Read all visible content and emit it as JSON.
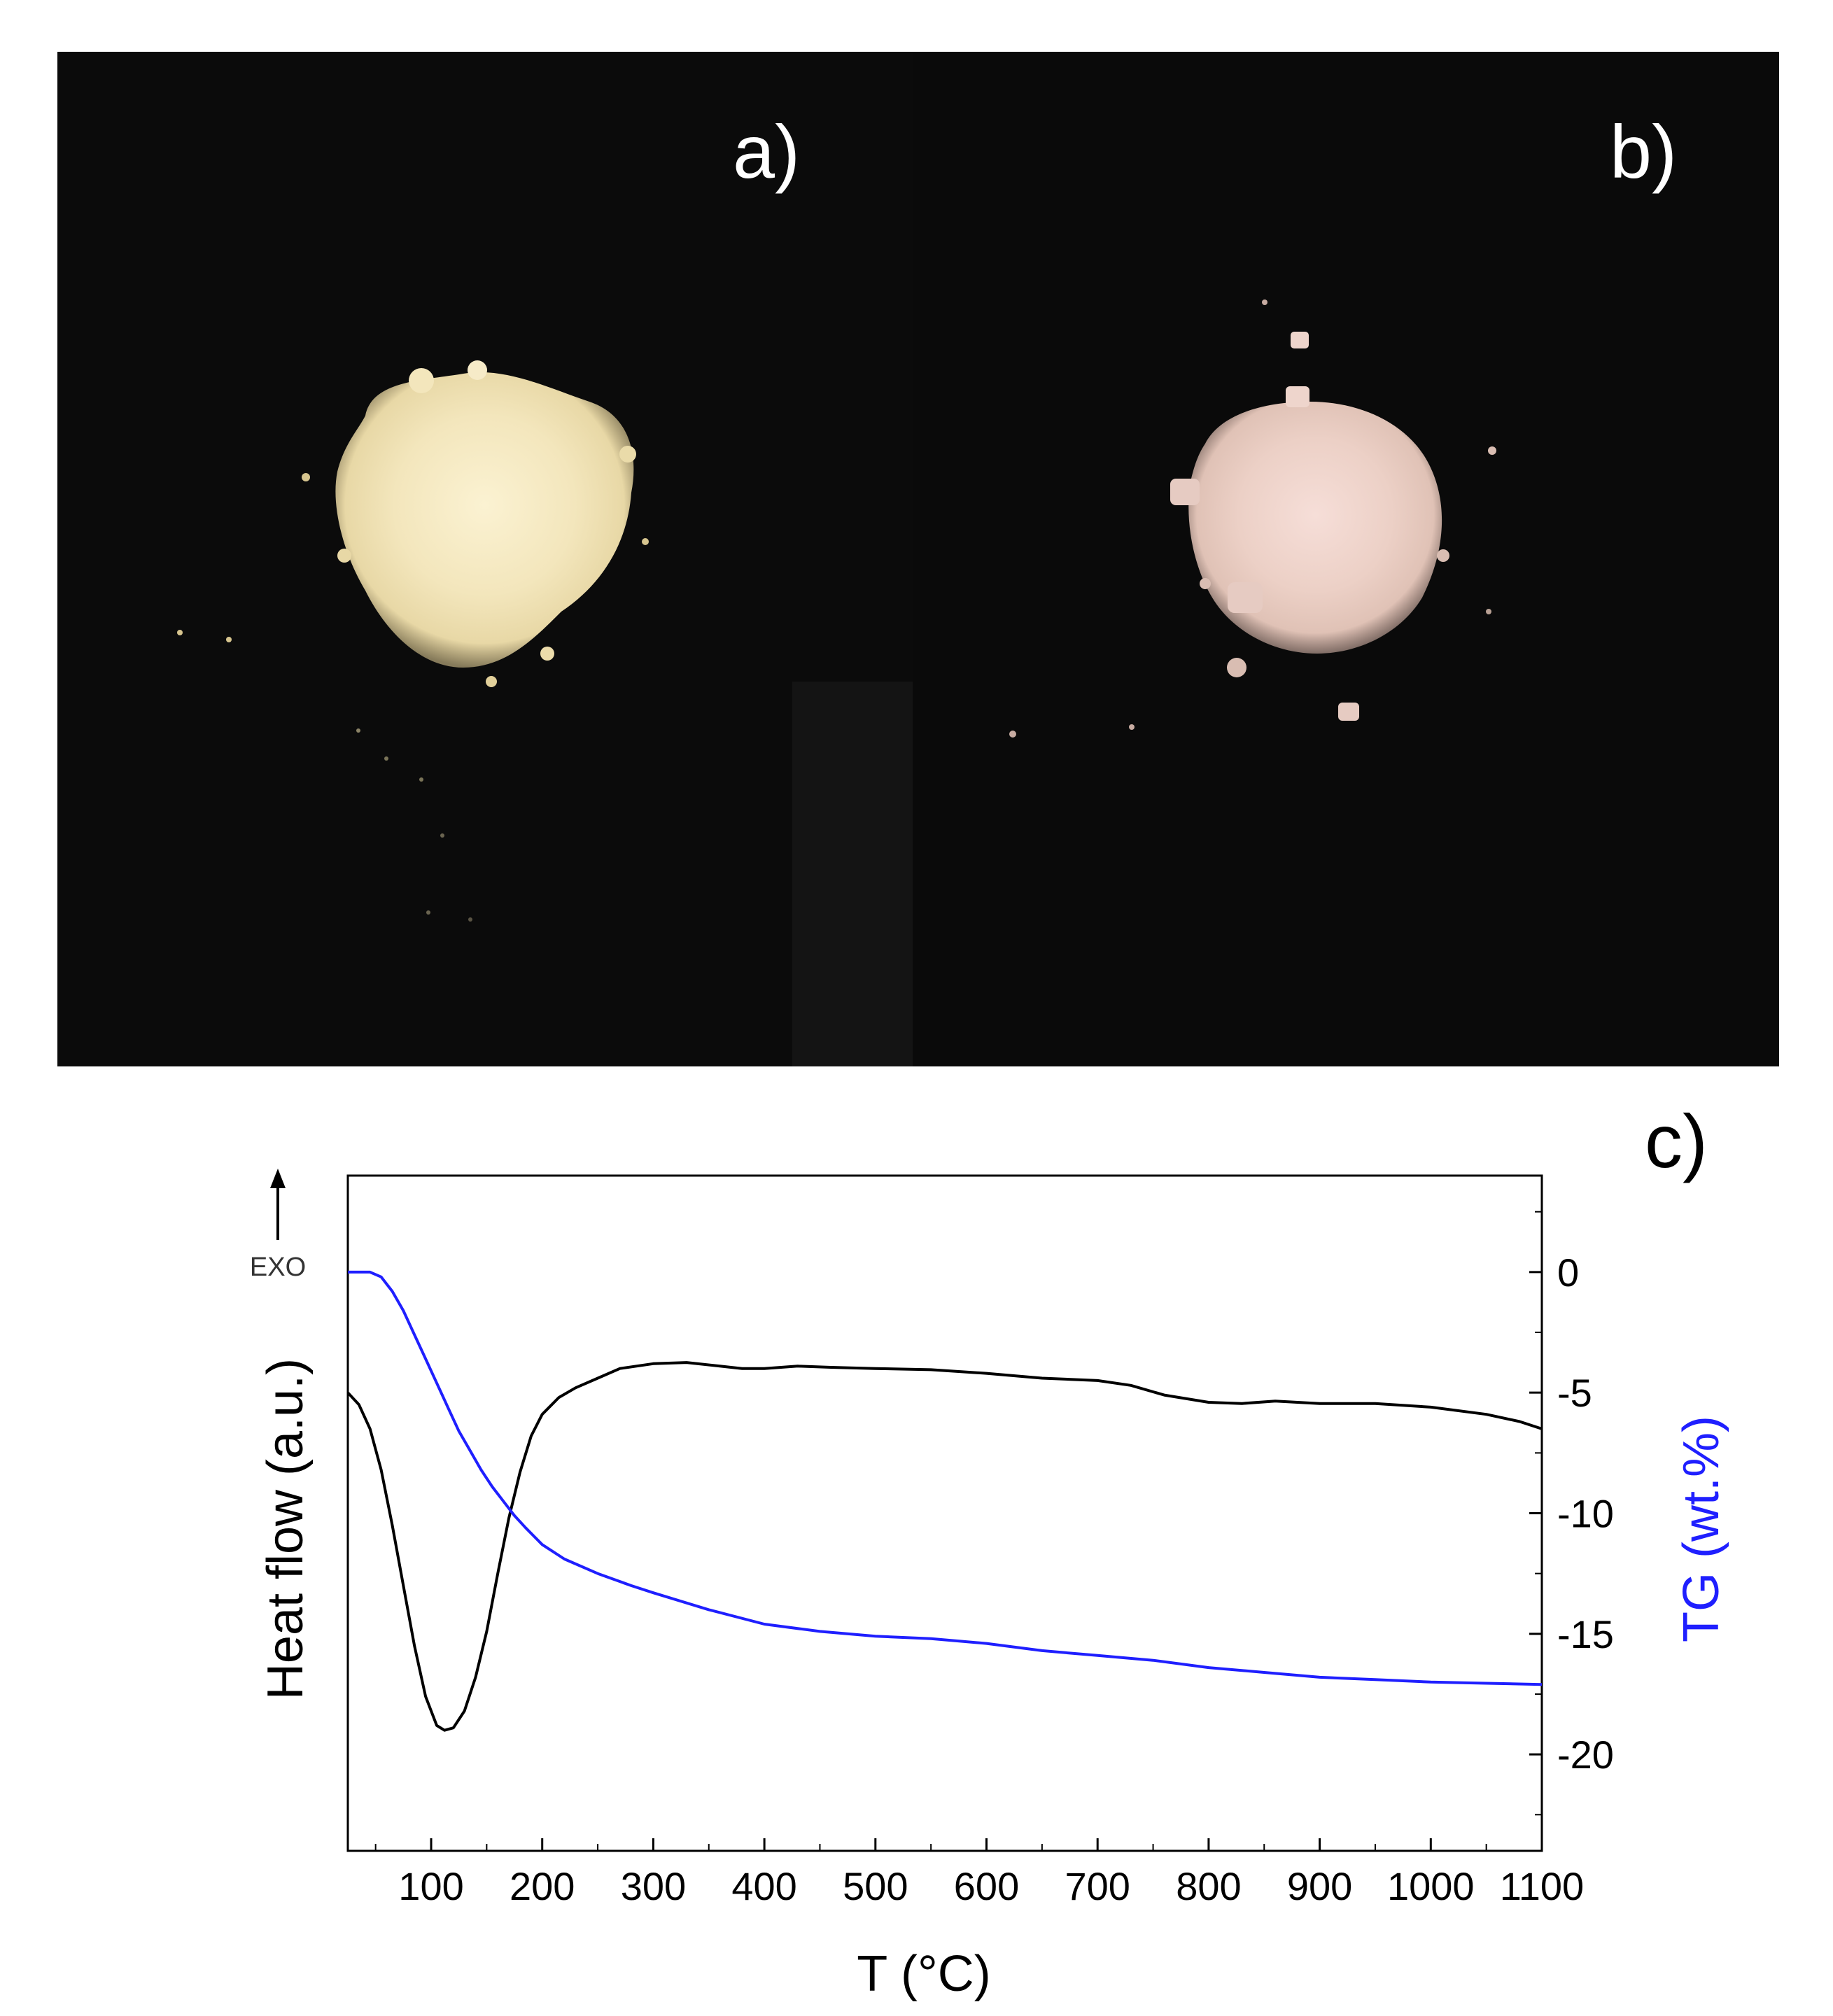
{
  "panels": {
    "a": {
      "label": "a)"
    },
    "b": {
      "label": "b)"
    },
    "c": {
      "label": "c)"
    }
  },
  "chart_data": {
    "type": "line",
    "xlabel": "T (°C)",
    "ylabel_left": "Heat flow (a.u.)",
    "ylabel_right": "TG (wt.%)",
    "exo_label": "EXO",
    "xlim": [
      25,
      1100
    ],
    "ylim_right": [
      -24,
      4
    ],
    "xticks": [
      100,
      200,
      300,
      400,
      500,
      600,
      700,
      800,
      900,
      1000,
      1100
    ],
    "yticks_right": [
      0,
      -5,
      -10,
      -15,
      -20
    ],
    "grid": false,
    "colors": {
      "heat_flow": "#000000",
      "tg": "#1f1fff"
    },
    "series": [
      {
        "axis": "left",
        "points": [
          [
            25,
            -5.0
          ],
          [
            35,
            -5.5
          ],
          [
            45,
            -6.5
          ],
          [
            55,
            -8.2
          ],
          [
            65,
            -10.5
          ],
          [
            75,
            -13.0
          ],
          [
            85,
            -15.5
          ],
          [
            95,
            -17.6
          ],
          [
            105,
            -18.8
          ],
          [
            112,
            -19.0
          ],
          [
            120,
            -18.9
          ],
          [
            130,
            -18.2
          ],
          [
            140,
            -16.8
          ],
          [
            150,
            -14.9
          ],
          [
            160,
            -12.5
          ],
          [
            170,
            -10.2
          ],
          [
            180,
            -8.3
          ],
          [
            190,
            -6.8
          ],
          [
            200,
            -5.9
          ],
          [
            215,
            -5.2
          ],
          [
            230,
            -4.8
          ],
          [
            250,
            -4.4
          ],
          [
            270,
            -4.0
          ],
          [
            300,
            -3.8
          ],
          [
            330,
            -3.75
          ],
          [
            360,
            -3.9
          ],
          [
            380,
            -4.0
          ],
          [
            400,
            -4.0
          ],
          [
            430,
            -3.9
          ],
          [
            460,
            -3.95
          ],
          [
            500,
            -4.0
          ],
          [
            550,
            -4.05
          ],
          [
            600,
            -4.2
          ],
          [
            650,
            -4.4
          ],
          [
            700,
            -4.5
          ],
          [
            730,
            -4.7
          ],
          [
            760,
            -5.1
          ],
          [
            800,
            -5.4
          ],
          [
            830,
            -5.45
          ],
          [
            860,
            -5.35
          ],
          [
            900,
            -5.45
          ],
          [
            950,
            -5.45
          ],
          [
            1000,
            -5.6
          ],
          [
            1050,
            -5.9
          ],
          [
            1080,
            -6.2
          ],
          [
            1100,
            -6.5
          ]
        ]
      },
      {
        "axis": "right",
        "points": [
          [
            25,
            0.0
          ],
          [
            45,
            0.0
          ],
          [
            55,
            -0.2
          ],
          [
            65,
            -0.8
          ],
          [
            75,
            -1.6
          ],
          [
            85,
            -2.6
          ],
          [
            95,
            -3.6
          ],
          [
            105,
            -4.6
          ],
          [
            115,
            -5.6
          ],
          [
            125,
            -6.6
          ],
          [
            135,
            -7.4
          ],
          [
            145,
            -8.2
          ],
          [
            155,
            -8.9
          ],
          [
            165,
            -9.5
          ],
          [
            175,
            -10.1
          ],
          [
            185,
            -10.6
          ],
          [
            200,
            -11.3
          ],
          [
            220,
            -11.9
          ],
          [
            250,
            -12.5
          ],
          [
            280,
            -13.0
          ],
          [
            300,
            -13.3
          ],
          [
            350,
            -14.0
          ],
          [
            400,
            -14.6
          ],
          [
            450,
            -14.9
          ],
          [
            500,
            -15.1
          ],
          [
            550,
            -15.2
          ],
          [
            600,
            -15.4
          ],
          [
            650,
            -15.7
          ],
          [
            700,
            -15.9
          ],
          [
            750,
            -16.1
          ],
          [
            800,
            -16.4
          ],
          [
            850,
            -16.6
          ],
          [
            900,
            -16.8
          ],
          [
            950,
            -16.9
          ],
          [
            1000,
            -17.0
          ],
          [
            1050,
            -17.05
          ],
          [
            1100,
            -17.1
          ]
        ]
      }
    ]
  }
}
